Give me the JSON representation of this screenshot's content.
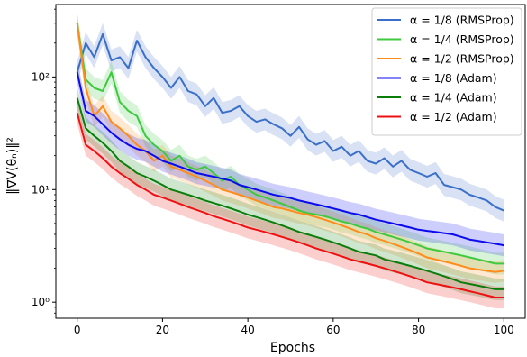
{
  "chart_data": {
    "type": "line",
    "xlabel": "Epochs",
    "ylabel": "‖∇V(θₙ)‖²",
    "xlim": [
      -5,
      105
    ],
    "ylim": [
      0.72,
      440
    ],
    "yscale": "log",
    "x_ticks": [
      0,
      20,
      40,
      60,
      80,
      100
    ],
    "y_ticks": [
      {
        "value": 1,
        "label": "10⁰"
      },
      {
        "value": 10,
        "label": "10¹"
      },
      {
        "value": 100,
        "label": "10²"
      }
    ],
    "legend_position": "top-right",
    "grid": false,
    "series": [
      {
        "name": "α = 1/8 (RMSProp)",
        "color": "#3a6fc9",
        "x": [
          0,
          2,
          4,
          6,
          8,
          10,
          12,
          14,
          16,
          18,
          20,
          22,
          24,
          26,
          28,
          30,
          32,
          34,
          36,
          38,
          40,
          42,
          44,
          46,
          48,
          50,
          52,
          54,
          56,
          58,
          60,
          62,
          64,
          66,
          68,
          70,
          72,
          74,
          76,
          78,
          80,
          82,
          84,
          86,
          88,
          90,
          92,
          94,
          96,
          98,
          100
        ],
        "values": [
          110,
          200,
          150,
          240,
          140,
          150,
          120,
          210,
          150,
          120,
          100,
          80,
          100,
          75,
          70,
          55,
          65,
          48,
          50,
          55,
          45,
          40,
          42,
          38,
          35,
          30,
          36,
          28,
          25,
          27,
          22,
          24,
          20,
          22,
          18,
          17,
          19,
          16,
          18,
          15,
          14,
          13,
          14,
          11,
          10.5,
          10,
          9,
          8.5,
          8,
          7,
          6.5
        ]
      },
      {
        "name": "α = 1/4 (RMSProp)",
        "color": "#3ec93e",
        "x": [
          0,
          2,
          4,
          6,
          8,
          10,
          12,
          14,
          16,
          18,
          20,
          22,
          24,
          26,
          28,
          30,
          32,
          34,
          36,
          38,
          40,
          42,
          44,
          46,
          48,
          50,
          52,
          54,
          56,
          58,
          60,
          62,
          64,
          66,
          68,
          70,
          72,
          74,
          76,
          78,
          80,
          82,
          84,
          86,
          88,
          90,
          92,
          94,
          96,
          98,
          100
        ],
        "values": [
          300,
          95,
          80,
          75,
          110,
          60,
          50,
          45,
          30,
          25,
          22,
          18,
          20,
          16,
          15,
          16,
          14,
          12,
          13,
          11,
          10,
          9,
          8.5,
          8,
          7.5,
          7,
          6.5,
          6.2,
          6,
          5.8,
          5.5,
          5.2,
          5,
          4.7,
          4.5,
          4.2,
          4,
          3.8,
          3.6,
          3.4,
          3.2,
          3,
          2.9,
          2.8,
          2.7,
          2.6,
          2.5,
          2.4,
          2.3,
          2.2,
          2.2
        ]
      },
      {
        "name": "α = 1/2 (RMSProp)",
        "color": "#ff8c1a",
        "x": [
          0,
          2,
          4,
          6,
          8,
          10,
          12,
          14,
          16,
          18,
          20,
          22,
          24,
          26,
          28,
          30,
          32,
          34,
          36,
          38,
          40,
          42,
          44,
          46,
          48,
          50,
          52,
          54,
          56,
          58,
          60,
          62,
          64,
          66,
          68,
          70,
          72,
          74,
          76,
          78,
          80,
          82,
          84,
          86,
          88,
          90,
          92,
          94,
          96,
          98,
          100
        ],
        "values": [
          300,
          80,
          45,
          55,
          40,
          35,
          30,
          25,
          22,
          18,
          20,
          16,
          15,
          14,
          13,
          12,
          11,
          10,
          9.5,
          9,
          8.5,
          8,
          7.5,
          7,
          6.8,
          6.5,
          6.2,
          6,
          5.7,
          5.4,
          5.1,
          4.8,
          4.5,
          4.2,
          4,
          3.7,
          3.5,
          3.3,
          3.1,
          2.9,
          2.7,
          2.5,
          2.4,
          2.3,
          2.2,
          2.1,
          2,
          1.95,
          1.9,
          1.85,
          1.9
        ]
      },
      {
        "name": "α = 1/8 (Adam)",
        "color": "#0a0aee",
        "x": [
          0,
          2,
          4,
          6,
          8,
          10,
          12,
          14,
          16,
          18,
          20,
          22,
          24,
          26,
          28,
          30,
          32,
          34,
          36,
          38,
          40,
          42,
          44,
          46,
          48,
          50,
          52,
          54,
          56,
          58,
          60,
          62,
          64,
          66,
          68,
          70,
          72,
          74,
          76,
          78,
          80,
          82,
          84,
          86,
          88,
          90,
          92,
          94,
          96,
          98,
          100
        ],
        "values": [
          110,
          50,
          45,
          38,
          32,
          28,
          25,
          23,
          22,
          20,
          18,
          17,
          16,
          15,
          14,
          13.5,
          13,
          12.5,
          12,
          11,
          10.5,
          10,
          9.5,
          9,
          8.7,
          8.4,
          8,
          7.7,
          7.4,
          7.1,
          6.8,
          6.5,
          6.2,
          6,
          5.7,
          5.4,
          5.2,
          5,
          4.8,
          4.6,
          4.4,
          4.3,
          4.2,
          4.1,
          4,
          3.8,
          3.6,
          3.5,
          3.4,
          3.3,
          3.2
        ]
      },
      {
        "name": "α = 1/4 (Adam)",
        "color": "#0b7d0b",
        "x": [
          0,
          2,
          4,
          6,
          8,
          10,
          12,
          14,
          16,
          18,
          20,
          22,
          24,
          26,
          28,
          30,
          32,
          34,
          36,
          38,
          40,
          42,
          44,
          46,
          48,
          50,
          52,
          54,
          56,
          58,
          60,
          62,
          64,
          66,
          68,
          70,
          72,
          74,
          76,
          78,
          80,
          82,
          84,
          86,
          88,
          90,
          92,
          94,
          96,
          98,
          100
        ],
        "values": [
          65,
          35,
          30,
          26,
          22,
          18,
          16,
          14,
          13,
          12,
          11,
          10,
          9.5,
          9,
          8.5,
          8,
          7.6,
          7.2,
          6.8,
          6.4,
          6,
          5.7,
          5.4,
          5.1,
          4.8,
          4.5,
          4.2,
          4,
          3.8,
          3.6,
          3.4,
          3.2,
          3,
          2.8,
          2.7,
          2.6,
          2.4,
          2.3,
          2.2,
          2.1,
          2,
          1.9,
          1.8,
          1.7,
          1.6,
          1.5,
          1.45,
          1.4,
          1.35,
          1.3,
          1.3
        ]
      },
      {
        "name": "α = 1/2 (Adam)",
        "color": "#ee1111",
        "x": [
          0,
          2,
          4,
          6,
          8,
          10,
          12,
          14,
          16,
          18,
          20,
          22,
          24,
          26,
          28,
          30,
          32,
          34,
          36,
          38,
          40,
          42,
          44,
          46,
          48,
          50,
          52,
          54,
          56,
          58,
          60,
          62,
          64,
          66,
          68,
          70,
          72,
          74,
          76,
          78,
          80,
          82,
          84,
          86,
          88,
          90,
          92,
          94,
          96,
          98,
          100
        ],
        "values": [
          48,
          25,
          22,
          19,
          16,
          14,
          12.5,
          11,
          10,
          9,
          8.5,
          8,
          7.5,
          7,
          6.6,
          6.2,
          5.8,
          5.5,
          5.2,
          4.9,
          4.6,
          4.4,
          4.2,
          4,
          3.8,
          3.6,
          3.4,
          3.2,
          3,
          2.85,
          2.7,
          2.55,
          2.4,
          2.3,
          2.2,
          2.1,
          2,
          1.9,
          1.8,
          1.7,
          1.6,
          1.5,
          1.45,
          1.4,
          1.35,
          1.3,
          1.25,
          1.2,
          1.15,
          1.1,
          1.1
        ]
      }
    ]
  }
}
